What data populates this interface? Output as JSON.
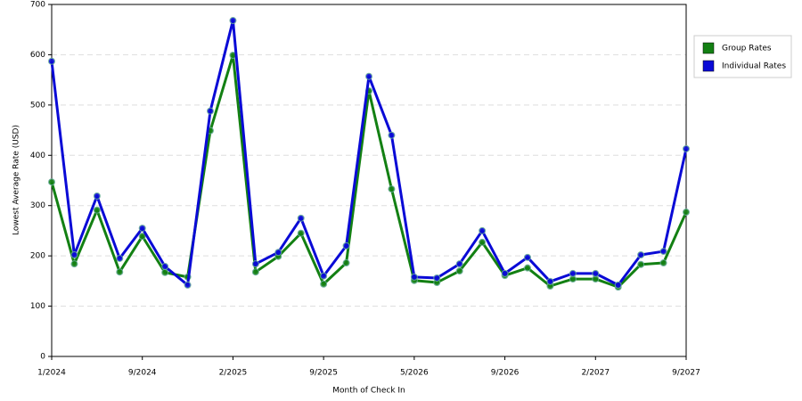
{
  "chart_data": {
    "type": "line",
    "x_label": "Month of Check In",
    "y_label": "Lowest Average Rate (USD)",
    "categories": [
      "1/2024",
      null,
      null,
      null,
      "9/2024",
      null,
      null,
      null,
      "2/2025",
      null,
      null,
      null,
      "9/2025",
      null,
      null,
      null,
      "5/2026",
      null,
      null,
      null,
      "9/2026",
      null,
      null,
      null,
      "2/2027",
      null,
      null,
      null,
      "9/2027"
    ],
    "series": [
      {
        "name": "Group Rates",
        "color": "#138013",
        "values": [
          347,
          184,
          291,
          168,
          239,
          167,
          158,
          449,
          599,
          168,
          199,
          245,
          144,
          186,
          528,
          333,
          151,
          147,
          170,
          227,
          161,
          176,
          140,
          154,
          154,
          138,
          183,
          186,
          287
        ]
      },
      {
        "name": "Individual Rates",
        "color": "#0a0ad6",
        "values": [
          587,
          202,
          319,
          195,
          255,
          179,
          142,
          488,
          668,
          184,
          207,
          275,
          160,
          220,
          557,
          440,
          158,
          156,
          184,
          250,
          165,
          197,
          149,
          165,
          165,
          142,
          202,
          209,
          413
        ]
      }
    ],
    "ylim": [
      0,
      700
    ],
    "yticks": [
      0,
      100,
      200,
      300,
      400,
      500,
      600,
      700
    ],
    "grid": true,
    "legend": "right"
  }
}
